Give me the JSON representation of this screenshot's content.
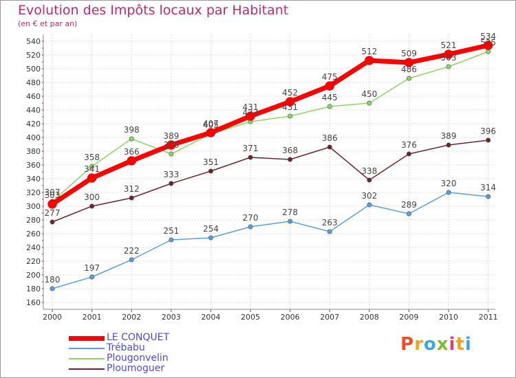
{
  "header": {
    "title": "Evolution des Impôts locaux par Habitant",
    "subtitle": "(en € et par an)"
  },
  "brand": {
    "letters": [
      "P",
      "r",
      "o",
      "x",
      "i",
      "t",
      "i"
    ],
    "colors": [
      "#e8502a",
      "#f3a31f",
      "#3aa8dc",
      "#7bbd2f",
      "#d8407c",
      "#f3a31f",
      "#3aa8dc"
    ]
  },
  "chart_data": {
    "type": "line",
    "title": "Evolution des Impôts locaux par Habitant",
    "subtitle": "(en € et par an)",
    "x": [
      "2000",
      "2001",
      "2002",
      "2003",
      "2004",
      "2005",
      "2006",
      "2007",
      "2008",
      "2009",
      "2010",
      "2011"
    ],
    "ylim": [
      160,
      540
    ],
    "yticks": [
      160,
      180,
      200,
      220,
      240,
      260,
      280,
      300,
      320,
      340,
      360,
      380,
      400,
      420,
      440,
      460,
      480,
      500,
      520,
      540
    ],
    "grid": true,
    "legend_position": "bottom-left",
    "series": [
      {
        "name": "LE CONQUET",
        "color": "#ff0000",
        "values": [
          303,
          341,
          366,
          389,
          407,
          431,
          452,
          475,
          512,
          509,
          521,
          534
        ]
      },
      {
        "name": "Trébabu",
        "color": "#5aa0d8",
        "values": [
          180,
          197,
          222,
          251,
          254,
          270,
          278,
          263,
          302,
          289,
          320,
          314
        ]
      },
      {
        "name": "Plougonvelin",
        "color": "#8cd464",
        "values": [
          307,
          358,
          398,
          376,
          405,
          423,
          431,
          445,
          450,
          486,
          503,
          525
        ]
      },
      {
        "name": "Ploumoguer",
        "color": "#6e2328",
        "values": [
          277,
          300,
          312,
          333,
          351,
          371,
          368,
          386,
          338,
          376,
          389,
          396
        ]
      }
    ]
  }
}
